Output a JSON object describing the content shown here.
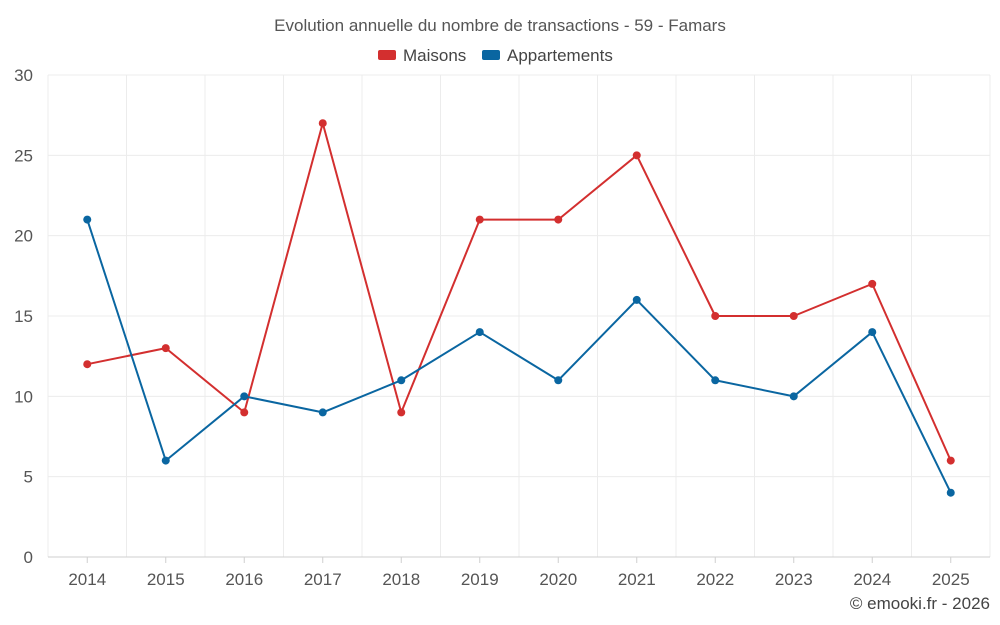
{
  "chart_data": {
    "type": "line",
    "title": "Evolution annuelle du nombre de transactions - 59 - Famars",
    "categories": [
      "2014",
      "2015",
      "2016",
      "2017",
      "2018",
      "2019",
      "2020",
      "2021",
      "2022",
      "2023",
      "2024",
      "2025"
    ],
    "series": [
      {
        "name": "Maisons",
        "color": "#d32f2f",
        "values": [
          12,
          13,
          9,
          27,
          9,
          21,
          21,
          25,
          15,
          15,
          17,
          6
        ]
      },
      {
        "name": "Appartements",
        "color": "#0a66a1",
        "values": [
          21,
          6,
          10,
          9,
          11,
          14,
          11,
          16,
          11,
          10,
          14,
          4
        ]
      }
    ],
    "ylim": [
      0,
      30
    ],
    "yticks": [
      0,
      5,
      10,
      15,
      20,
      25,
      30
    ],
    "xlabel": "",
    "ylabel": "",
    "grid": true,
    "legend_position": "top-center"
  },
  "credit": "© emooki.fr - 2026"
}
